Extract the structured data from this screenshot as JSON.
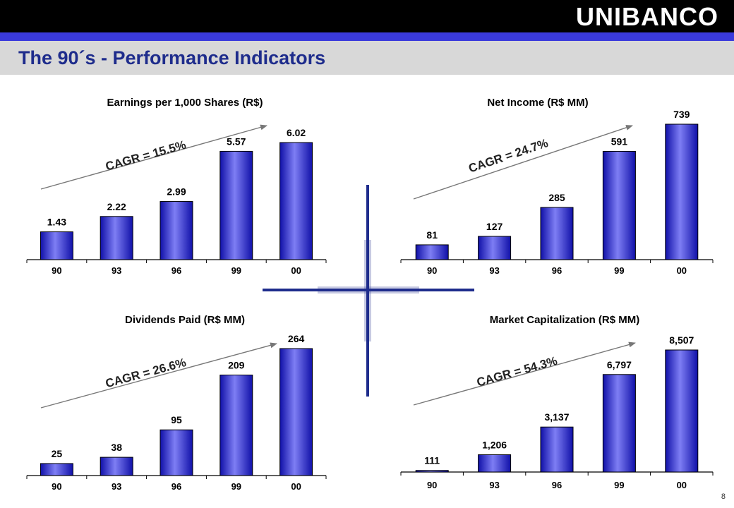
{
  "header": {
    "logo_text": "UNIBANCO",
    "title": "The 90´s - Performance Indicators",
    "page_number": "8"
  },
  "colors": {
    "bar_light": "#7e7ef4",
    "bar_dark": "#1010a8",
    "bar_outline": "#000000",
    "title_color": "#1e2c8c",
    "accent_bar": "#3a3adc",
    "cross": "#1e2c8c"
  },
  "chart_data": [
    {
      "type": "bar",
      "title": "Earnings per 1,000 Shares (R$)",
      "categories": [
        "90",
        "93",
        "96",
        "99",
        "00"
      ],
      "values": [
        1.43,
        2.22,
        2.99,
        5.57,
        6.02
      ],
      "value_labels": [
        "1.43",
        "2.22",
        "2.99",
        "5.57",
        "6.02"
      ],
      "annotation": "CAGR = 15.5%",
      "xlabel": "",
      "ylabel": "",
      "ylim": [
        0,
        6.8
      ],
      "grid": false,
      "legend": "none"
    },
    {
      "type": "bar",
      "title": "Net Income (R$ MM)",
      "categories": [
        "90",
        "93",
        "96",
        "99",
        "00"
      ],
      "values": [
        81,
        127,
        285,
        591,
        739
      ],
      "value_labels": [
        "81",
        "127",
        "285",
        "591",
        "739"
      ],
      "annotation": "CAGR = 24.7%",
      "xlabel": "",
      "ylabel": "",
      "ylim": [
        0,
        770
      ],
      "grid": false,
      "legend": "none"
    },
    {
      "type": "bar",
      "title": "Dividends Paid (R$ MM)",
      "categories": [
        "90",
        "93",
        "96",
        "99",
        "00"
      ],
      "values": [
        25,
        38,
        95,
        209,
        264
      ],
      "value_labels": [
        "25",
        "38",
        "95",
        "209",
        "264"
      ],
      "annotation": "CAGR = 26.6%",
      "xlabel": "",
      "ylabel": "",
      "ylim": [
        0,
        300
      ],
      "grid": false,
      "legend": "none"
    },
    {
      "type": "bar",
      "title": "Market Capitalization (R$ MM)",
      "categories": [
        "90",
        "93",
        "96",
        "99",
        "00"
      ],
      "values": [
        111,
        1206,
        3137,
        6797,
        8507
      ],
      "value_labels": [
        "111",
        "1,206",
        "3,137",
        "6,797",
        "8,507"
      ],
      "annotation": "CAGR = 54.3%",
      "xlabel": "",
      "ylabel": "",
      "ylim": [
        0,
        9300
      ],
      "grid": false,
      "legend": "none"
    }
  ]
}
